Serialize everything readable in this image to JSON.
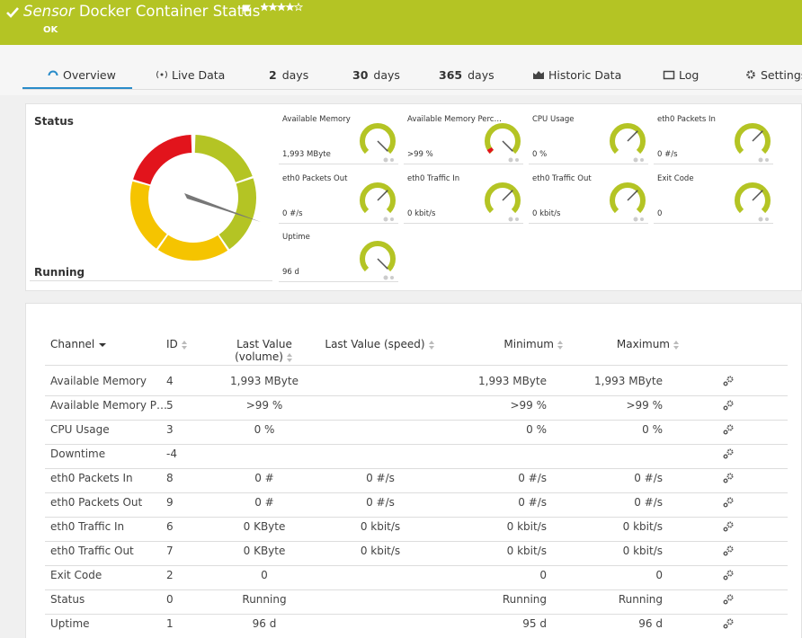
{
  "header": {
    "prefix": "Sensor",
    "title": "Docker Container Status",
    "status": "OK"
  },
  "tabs": [
    {
      "label": "Overview"
    },
    {
      "label": "Live Data"
    },
    {
      "bold": "2",
      "label": "days"
    },
    {
      "bold": "30",
      "label": "days"
    },
    {
      "bold": "365",
      "label": "days"
    },
    {
      "label": "Historic Data"
    },
    {
      "label": "Log"
    },
    {
      "label": "Settings"
    }
  ],
  "status_panel": {
    "label": "Status",
    "value": "Running"
  },
  "gauges": [
    {
      "name": "Available Memory",
      "value": "1,993 MByte"
    },
    {
      "name": "Available Memory Perc…",
      "value": ">99 %"
    },
    {
      "name": "CPU Usage",
      "value": "0 %"
    },
    {
      "name": "eth0 Packets In",
      "value": "0 #/s"
    },
    {
      "name": "eth0 Packets Out",
      "value": "0 #/s"
    },
    {
      "name": "eth0 Traffic In",
      "value": "0 kbit/s"
    },
    {
      "name": "eth0 Traffic Out",
      "value": "0 kbit/s"
    },
    {
      "name": "Exit Code",
      "value": "0"
    },
    {
      "name": "Uptime",
      "value": "96 d"
    }
  ],
  "table": {
    "headers": [
      "Channel",
      "ID",
      "Last Value (volume)",
      "Last Value (speed)",
      "Minimum",
      "Maximum"
    ],
    "rows": [
      [
        "Available Memory",
        4,
        "1,993 MByte",
        null,
        "1,993 MByte",
        "1,993 MByte"
      ],
      [
        "Available Memory P…",
        5,
        ">99 %",
        null,
        ">99 %",
        ">99 %"
      ],
      [
        "CPU Usage",
        3,
        "0 %",
        null,
        "0 %",
        "0 %"
      ],
      [
        "Downtime",
        -4,
        null,
        null,
        null,
        null
      ],
      [
        "eth0 Packets In",
        8,
        "0 #",
        "0 #/s",
        "0 #/s",
        "0 #/s"
      ],
      [
        "eth0 Packets Out",
        9,
        "0 #",
        "0 #/s",
        "0 #/s",
        "0 #/s"
      ],
      [
        "eth0 Traffic In",
        6,
        "0 KByte",
        "0 kbit/s",
        "0 kbit/s",
        "0 kbit/s"
      ],
      [
        "eth0 Traffic Out",
        7,
        "0 KByte",
        "0 kbit/s",
        "0 kbit/s",
        "0 kbit/s"
      ],
      [
        "Exit Code",
        2,
        "0",
        null,
        "0",
        "0"
      ],
      [
        "Status",
        0,
        "Running",
        null,
        "Running",
        "Running"
      ],
      [
        "Uptime",
        1,
        "96 d",
        null,
        "95 d",
        "96 d"
      ]
    ]
  }
}
